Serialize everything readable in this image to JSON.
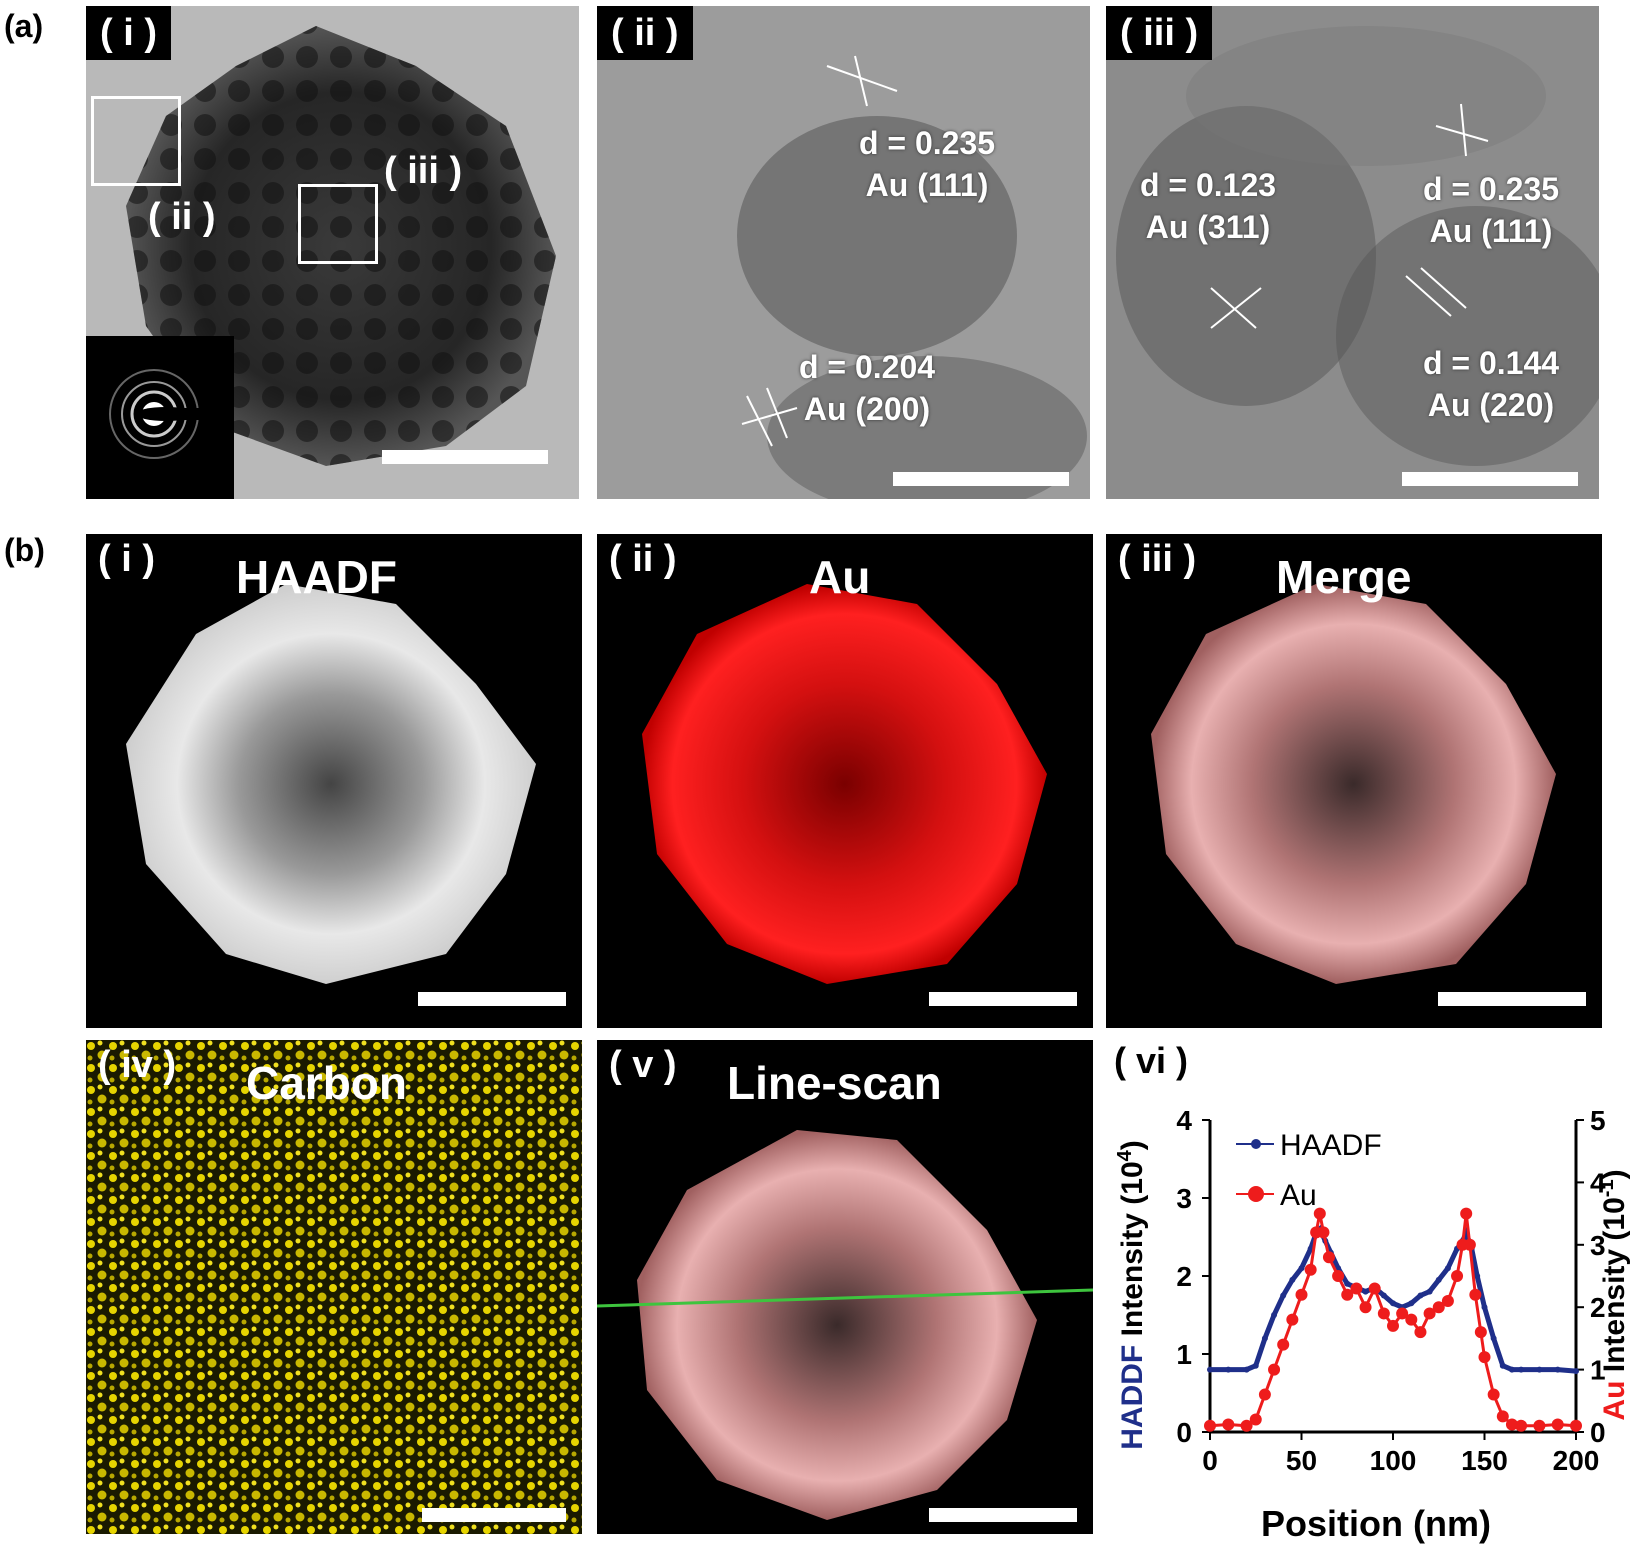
{
  "figure_labels": {
    "a": "(a)",
    "b": "(b)"
  },
  "panel_a": {
    "i": {
      "tag": "( i )",
      "region_ii": "( ii )",
      "region_iii": "( iii )"
    },
    "ii": {
      "tag": "( ii )",
      "annotations": [
        {
          "d": "d = 0.235",
          "plane": "Au (111)"
        },
        {
          "d": "d = 0.204",
          "plane": "Au (200)"
        }
      ]
    },
    "iii": {
      "tag": "( iii )",
      "annotations": [
        {
          "d": "d = 0.123",
          "plane": "Au (311)"
        },
        {
          "d": "d = 0.235",
          "plane": "Au (111)"
        },
        {
          "d": "d = 0.144",
          "plane": "Au (220)"
        }
      ]
    }
  },
  "panel_b": {
    "i": {
      "tag": "( i )",
      "title": "HAADF"
    },
    "ii": {
      "tag": "( ii )",
      "title": "Au"
    },
    "iii": {
      "tag": "( iii )",
      "title": "Merge"
    },
    "iv": {
      "tag": "( iv )",
      "title": "Carbon"
    },
    "v": {
      "tag": "( v )",
      "title": "Line-scan"
    },
    "vi": {
      "tag": "( vi )"
    }
  },
  "colors": {
    "haadf_series": "#1f2f8a",
    "au_series": "#ee1c1c",
    "carbon": "#e6d400",
    "line_scan": "#3ec43e"
  },
  "chart_data": {
    "type": "line",
    "xlabel": "Position (nm)",
    "ylabel_left": {
      "part1": "HADDF",
      "part2": " Intensity (10",
      "sup": "4",
      "part3": ")"
    },
    "ylabel_right": {
      "part1": "Au",
      "part2": " Intensity (10",
      "sup": "-1",
      "part3": ")"
    },
    "xlim": [
      0,
      200
    ],
    "xticks": [
      "0",
      "50",
      "100",
      "150",
      "200"
    ],
    "ylim_left": [
      0,
      4
    ],
    "yticks_left": [
      "0",
      "1",
      "2",
      "3",
      "4"
    ],
    "ylim_right": [
      0,
      5
    ],
    "yticks_right": [
      "0",
      "1",
      "2",
      "3",
      "4",
      "5"
    ],
    "legend": [
      "HAADF",
      "Au"
    ],
    "series": [
      {
        "name": "HAADF",
        "axis": "left",
        "x": [
          0,
          10,
          20,
          25,
          30,
          35,
          40,
          45,
          50,
          55,
          58,
          60,
          63,
          66,
          70,
          75,
          80,
          85,
          90,
          95,
          100,
          105,
          110,
          115,
          120,
          125,
          130,
          135,
          138,
          140,
          143,
          146,
          150,
          155,
          160,
          165,
          170,
          180,
          190,
          200
        ],
        "y": [
          0.8,
          0.8,
          0.8,
          0.85,
          1.2,
          1.5,
          1.75,
          1.95,
          2.1,
          2.35,
          2.55,
          2.6,
          2.45,
          2.3,
          2.1,
          1.9,
          1.85,
          1.8,
          1.85,
          1.75,
          1.65,
          1.6,
          1.65,
          1.75,
          1.8,
          1.95,
          2.1,
          2.35,
          2.45,
          2.55,
          2.35,
          2.0,
          1.6,
          1.2,
          0.85,
          0.8,
          0.8,
          0.8,
          0.8,
          0.78
        ]
      },
      {
        "name": "Au",
        "axis": "right",
        "x": [
          0,
          10,
          20,
          25,
          30,
          35,
          40,
          45,
          50,
          55,
          58,
          60,
          62,
          65,
          70,
          75,
          80,
          85,
          90,
          95,
          100,
          105,
          110,
          115,
          120,
          125,
          130,
          135,
          138,
          140,
          142,
          145,
          148,
          150,
          155,
          160,
          165,
          170,
          180,
          190,
          200
        ],
        "y": [
          0.1,
          0.12,
          0.1,
          0.2,
          0.6,
          1.0,
          1.4,
          1.8,
          2.2,
          2.6,
          3.2,
          3.5,
          3.2,
          2.8,
          2.5,
          2.2,
          2.3,
          2.0,
          2.3,
          1.9,
          1.7,
          1.9,
          1.8,
          1.6,
          1.9,
          2.0,
          2.1,
          2.5,
          3.0,
          3.5,
          3.0,
          2.2,
          1.6,
          1.2,
          0.6,
          0.25,
          0.12,
          0.1,
          0.1,
          0.12,
          0.1
        ]
      }
    ]
  }
}
